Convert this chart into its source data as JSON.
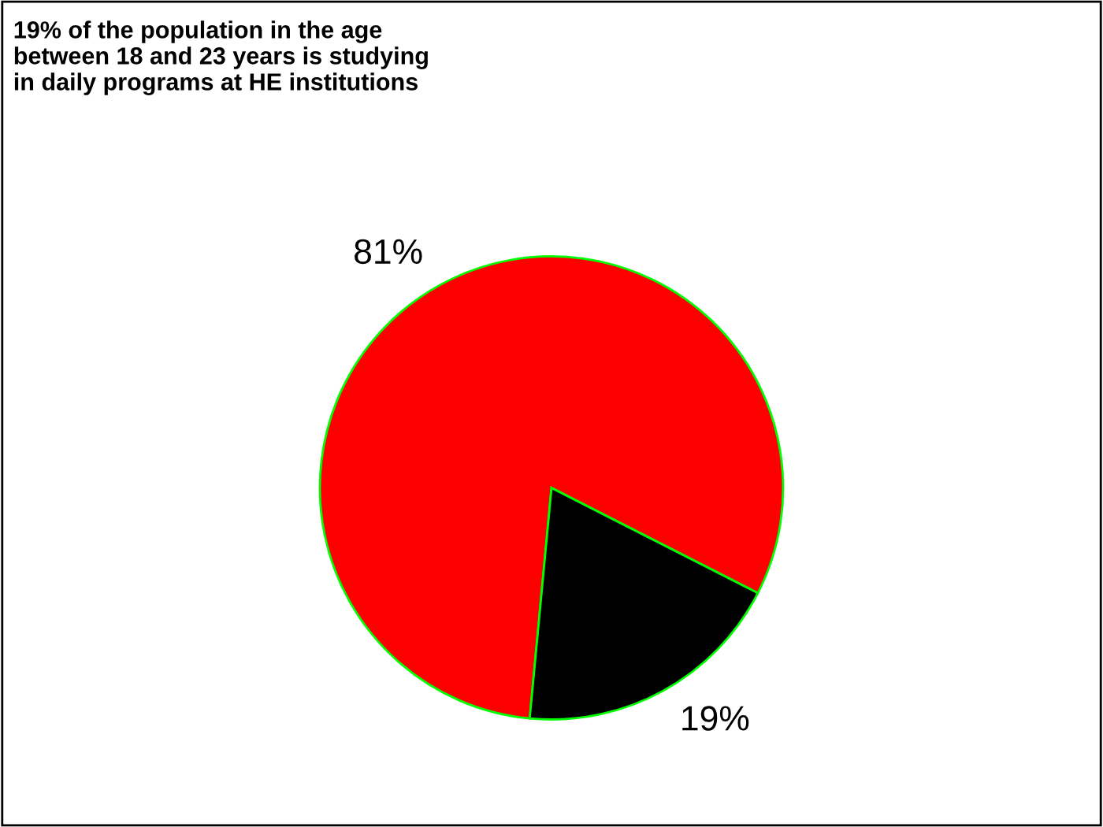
{
  "chart_data": {
    "type": "pie",
    "title": "19% of the population in the age\nbetween 18 and 23 years is studying\nin daily programs at HE institutions",
    "categories": [
      null,
      null
    ],
    "values": [
      81,
      19
    ],
    "colors": [
      "#ff0000",
      "#000000"
    ],
    "value_labels": [
      "81%",
      "19%"
    ],
    "legend": false
  }
}
